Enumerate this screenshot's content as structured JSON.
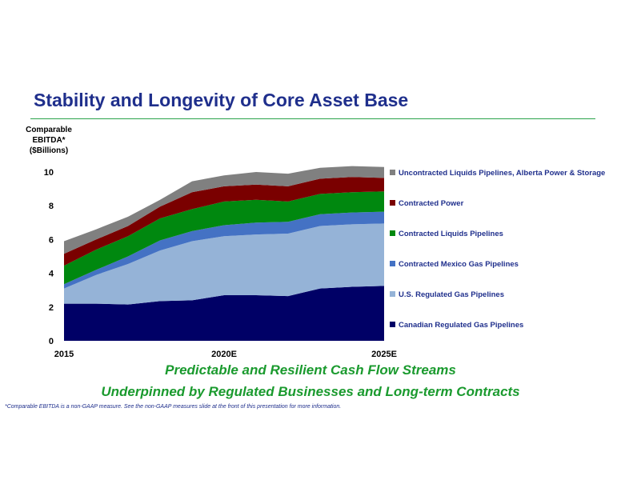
{
  "page": {
    "title": "Stability and Longevity of Core Asset Base",
    "ylabel_lines": [
      "Comparable",
      "EBITDA*",
      "($Billions)"
    ],
    "tagline_1": "Predictable and Resilient Cash Flow Streams",
    "tagline_2": "Underpinned by Regulated Businesses and Long-term Contracts",
    "footnote": "*Comparable EBITDA is a non-GAAP measure.  See the non-GAAP measures slide at the front of this presentation for more information."
  },
  "chart_data": {
    "type": "area",
    "stacked": true,
    "x": [
      2015,
      2016,
      2017,
      2018,
      2019,
      2020,
      2021,
      2022,
      2023,
      2024,
      2025
    ],
    "x_tick_values": [
      2015,
      2020,
      2025
    ],
    "x_tick_labels": [
      "2015",
      "2020E",
      "2025E"
    ],
    "ylim": [
      0,
      10
    ],
    "y_ticks": [
      0,
      2,
      4,
      6,
      8,
      10
    ],
    "grid": false,
    "legend_position": "right",
    "series": [
      {
        "name": "Canadian Regulated Gas Pipelines",
        "color": "#000066",
        "values": [
          2.2,
          2.2,
          2.15,
          2.35,
          2.4,
          2.7,
          2.7,
          2.65,
          3.1,
          3.2,
          3.25
        ]
      },
      {
        "name": "U.S. Regulated Gas Pipelines",
        "color": "#95b3d7",
        "values": [
          0.9,
          1.7,
          2.4,
          3.0,
          3.5,
          3.5,
          3.6,
          3.7,
          3.7,
          3.7,
          3.7
        ]
      },
      {
        "name": "Contracted Mexico Gas Pipelines",
        "color": "#4472c4",
        "values": [
          0.25,
          0.3,
          0.45,
          0.6,
          0.6,
          0.65,
          0.7,
          0.7,
          0.7,
          0.7,
          0.7
        ]
      },
      {
        "name": "Contracted Liquids Pipelines",
        "color": "#00880f",
        "values": [
          1.1,
          1.2,
          1.2,
          1.3,
          1.3,
          1.4,
          1.35,
          1.2,
          1.2,
          1.2,
          1.2
        ]
      },
      {
        "name": "Contracted Power",
        "color": "#7a0000",
        "values": [
          0.7,
          0.6,
          0.6,
          0.7,
          1.0,
          0.9,
          0.9,
          0.9,
          0.9,
          0.9,
          0.8
        ]
      },
      {
        "name": "Uncontracted Liquids Pipelines, Alberta Power & Storage",
        "color": "#808080",
        "values": [
          0.75,
          0.6,
          0.55,
          0.4,
          0.65,
          0.65,
          0.75,
          0.75,
          0.65,
          0.65,
          0.65
        ]
      }
    ]
  }
}
